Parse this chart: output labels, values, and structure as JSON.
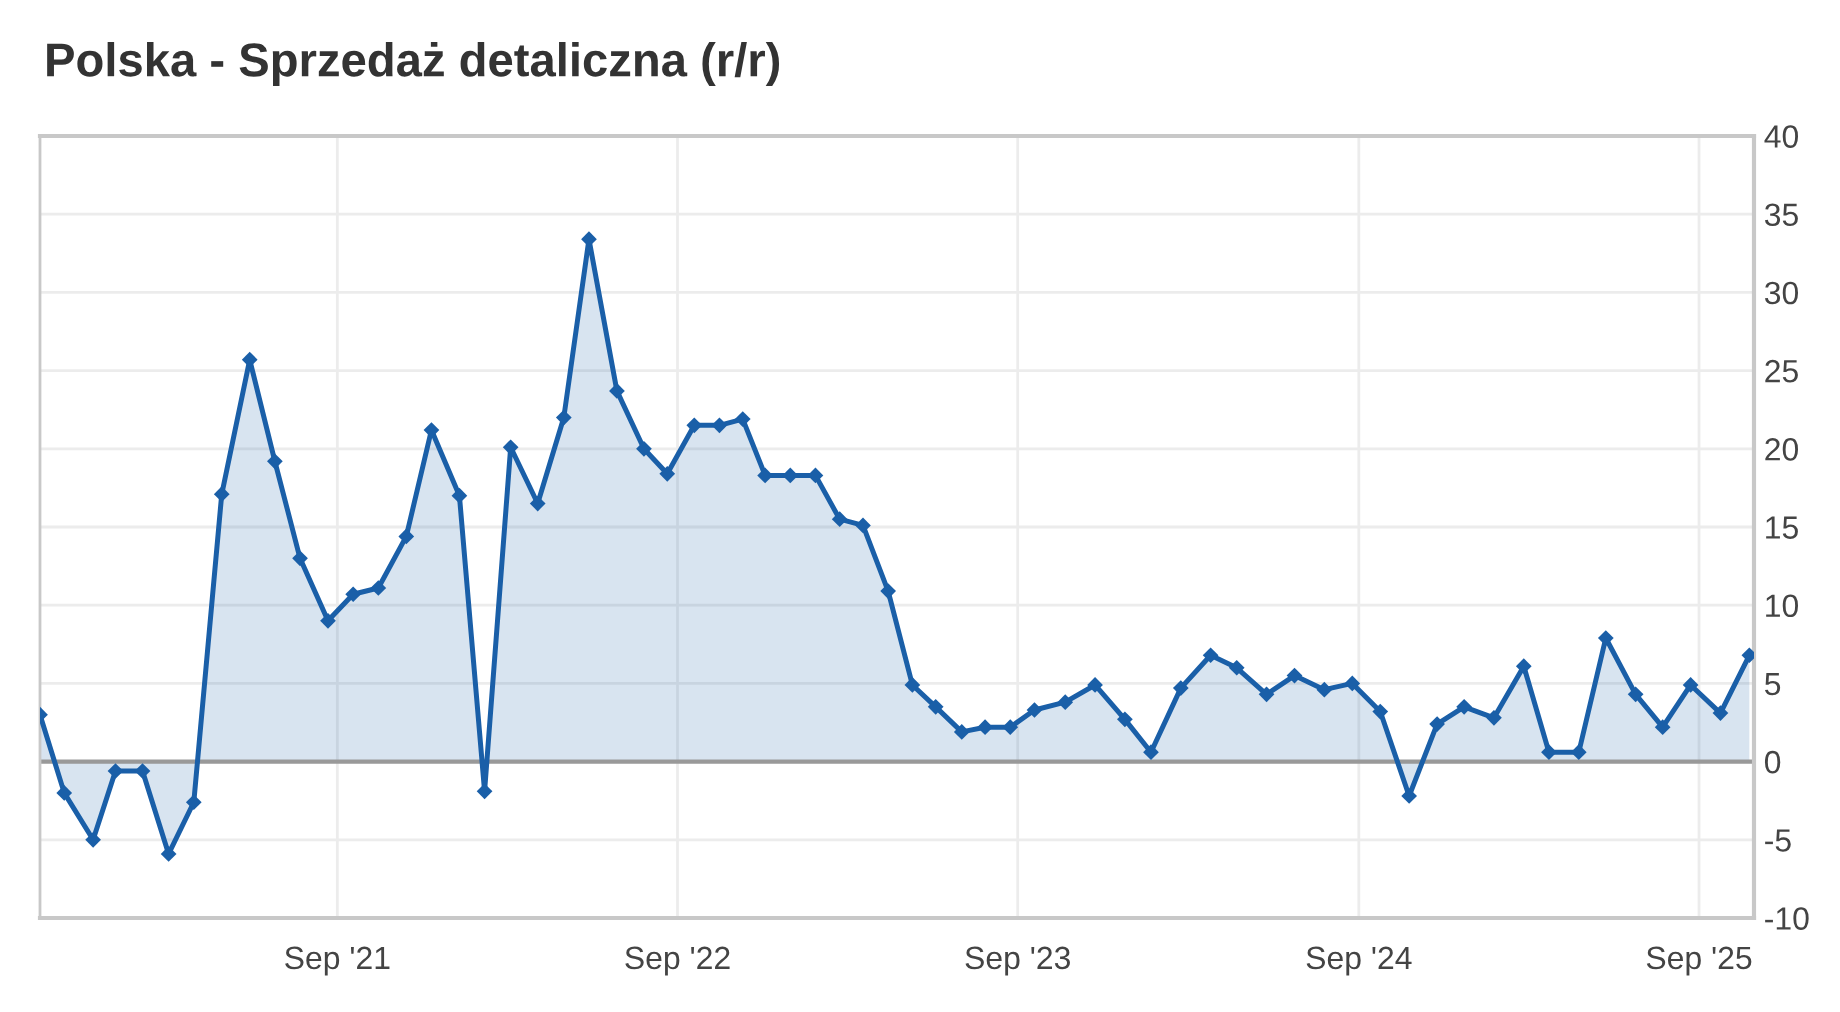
{
  "chart_data": {
    "type": "area",
    "title": "Polska - Sprzedaż detaliczna (r/r)",
    "x": [
      "2020-10-17",
      "2020-11-12",
      "2020-12-13",
      "2021-01-06",
      "2021-02-04",
      "2021-03-04",
      "2021-03-31",
      "2021-04-30",
      "2021-05-30",
      "2021-06-26",
      "2021-07-23",
      "2021-08-22",
      "2021-09-18",
      "2021-10-15",
      "2021-11-14",
      "2021-12-11",
      "2022-01-10",
      "2022-02-06",
      "2022-03-06",
      "2022-04-04",
      "2022-05-02",
      "2022-05-29",
      "2022-06-28",
      "2022-07-27",
      "2022-08-21",
      "2022-09-19",
      "2022-10-16",
      "2022-11-10",
      "2022-12-04",
      "2022-12-31",
      "2023-01-27",
      "2023-02-22",
      "2023-03-19",
      "2023-04-15",
      "2023-05-11",
      "2023-06-05",
      "2023-07-03",
      "2023-07-28",
      "2023-08-24",
      "2023-09-19",
      "2023-10-22",
      "2023-11-23",
      "2023-12-25",
      "2024-01-22",
      "2024-02-23",
      "2024-03-26",
      "2024-04-23",
      "2024-05-25",
      "2024-06-24",
      "2024-07-26",
      "2024-08-25",
      "2024-09-24",
      "2024-10-25",
      "2024-11-24",
      "2024-12-23",
      "2025-01-24",
      "2025-02-25",
      "2025-03-24",
      "2025-04-25",
      "2025-05-24",
      "2025-06-25",
      "2025-07-24",
      "2025-08-23",
      "2025-09-24",
      "2025-10-25"
    ],
    "series": [
      {
        "color": "#1a5fa8",
        "values": [
          3.0,
          -2.0,
          -5.0,
          -0.6,
          -0.6,
          -5.9,
          -2.6,
          17.1,
          25.7,
          19.2,
          13.0,
          9.0,
          10.7,
          11.1,
          14.4,
          21.2,
          17.0,
          -1.9,
          20.1,
          16.5,
          22.0,
          33.4,
          23.7,
          20.0,
          18.4,
          21.5,
          21.5,
          21.9,
          18.3,
          18.3,
          18.3,
          15.5,
          15.1,
          10.9,
          4.9,
          3.5,
          1.9,
          2.2,
          2.2,
          3.3,
          3.8,
          4.9,
          2.7,
          0.6,
          4.7,
          6.8,
          6.0,
          4.3,
          5.5,
          4.6,
          5.0,
          3.2,
          -2.2,
          2.4,
          3.5,
          2.8,
          6.1,
          0.6,
          0.6,
          7.9,
          4.3,
          2.2,
          4.9,
          3.1,
          6.8
        ]
      }
    ],
    "xlim": [
      "2020-10-17",
      "2025-10-30"
    ],
    "xticks": [
      {
        "value": "2021-09-01",
        "label": "Sep '21"
      },
      {
        "value": "2022-09-01",
        "label": "Sep '22"
      },
      {
        "value": "2023-09-01",
        "label": "Sep '23"
      },
      {
        "value": "2024-09-01",
        "label": "Sep '24"
      },
      {
        "value": "2025-09-01",
        "label": "Sep '25"
      }
    ],
    "ylim": [
      -10,
      40
    ],
    "yticks": [
      -10,
      -5,
      0,
      5,
      10,
      15,
      20,
      25,
      30,
      35,
      40
    ],
    "ref_lines": [
      {
        "axis": "y",
        "value": 0,
        "color": "#999999"
      }
    ],
    "grid": true,
    "legend": false,
    "marker": "diamond",
    "line_style": "solid"
  }
}
